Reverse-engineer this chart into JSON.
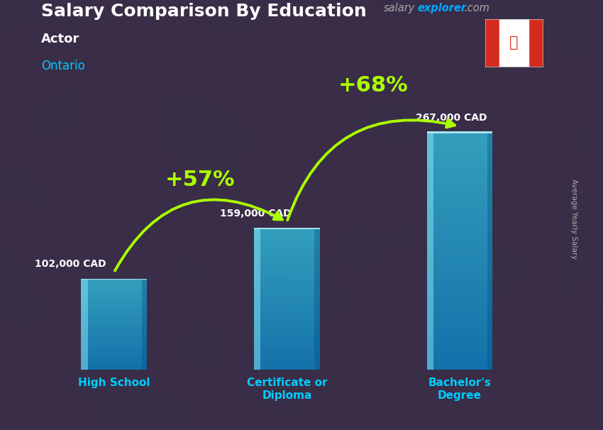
{
  "title": "Salary Comparison By Education",
  "subtitle_job": "Actor",
  "subtitle_location": "Ontario",
  "ylabel": "Average Yearly Salary",
  "categories": [
    "High School",
    "Certificate or\nDiploma",
    "Bachelor's\nDegree"
  ],
  "values": [
    102000,
    159000,
    267000
  ],
  "value_labels": [
    "102,000 CAD",
    "159,000 CAD",
    "267,000 CAD"
  ],
  "pct_labels": [
    "+57%",
    "+68%"
  ],
  "pct_color": "#aaff00",
  "title_color": "#ffffff",
  "job_color": "#ffffff",
  "location_color": "#00ccff",
  "value_label_color": "#ffffff",
  "xlabel_color": "#00ccff",
  "bar_alpha": 0.75,
  "ylim": [
    0,
    340000
  ],
  "bar_width": 0.38,
  "x_positions": [
    0.5,
    1.5,
    2.5
  ],
  "xlim": [
    0.05,
    3.05
  ],
  "bg_color": "#2a2535",
  "website_text_color": "#00aaff",
  "website_salary_color": "#aaaaaa"
}
